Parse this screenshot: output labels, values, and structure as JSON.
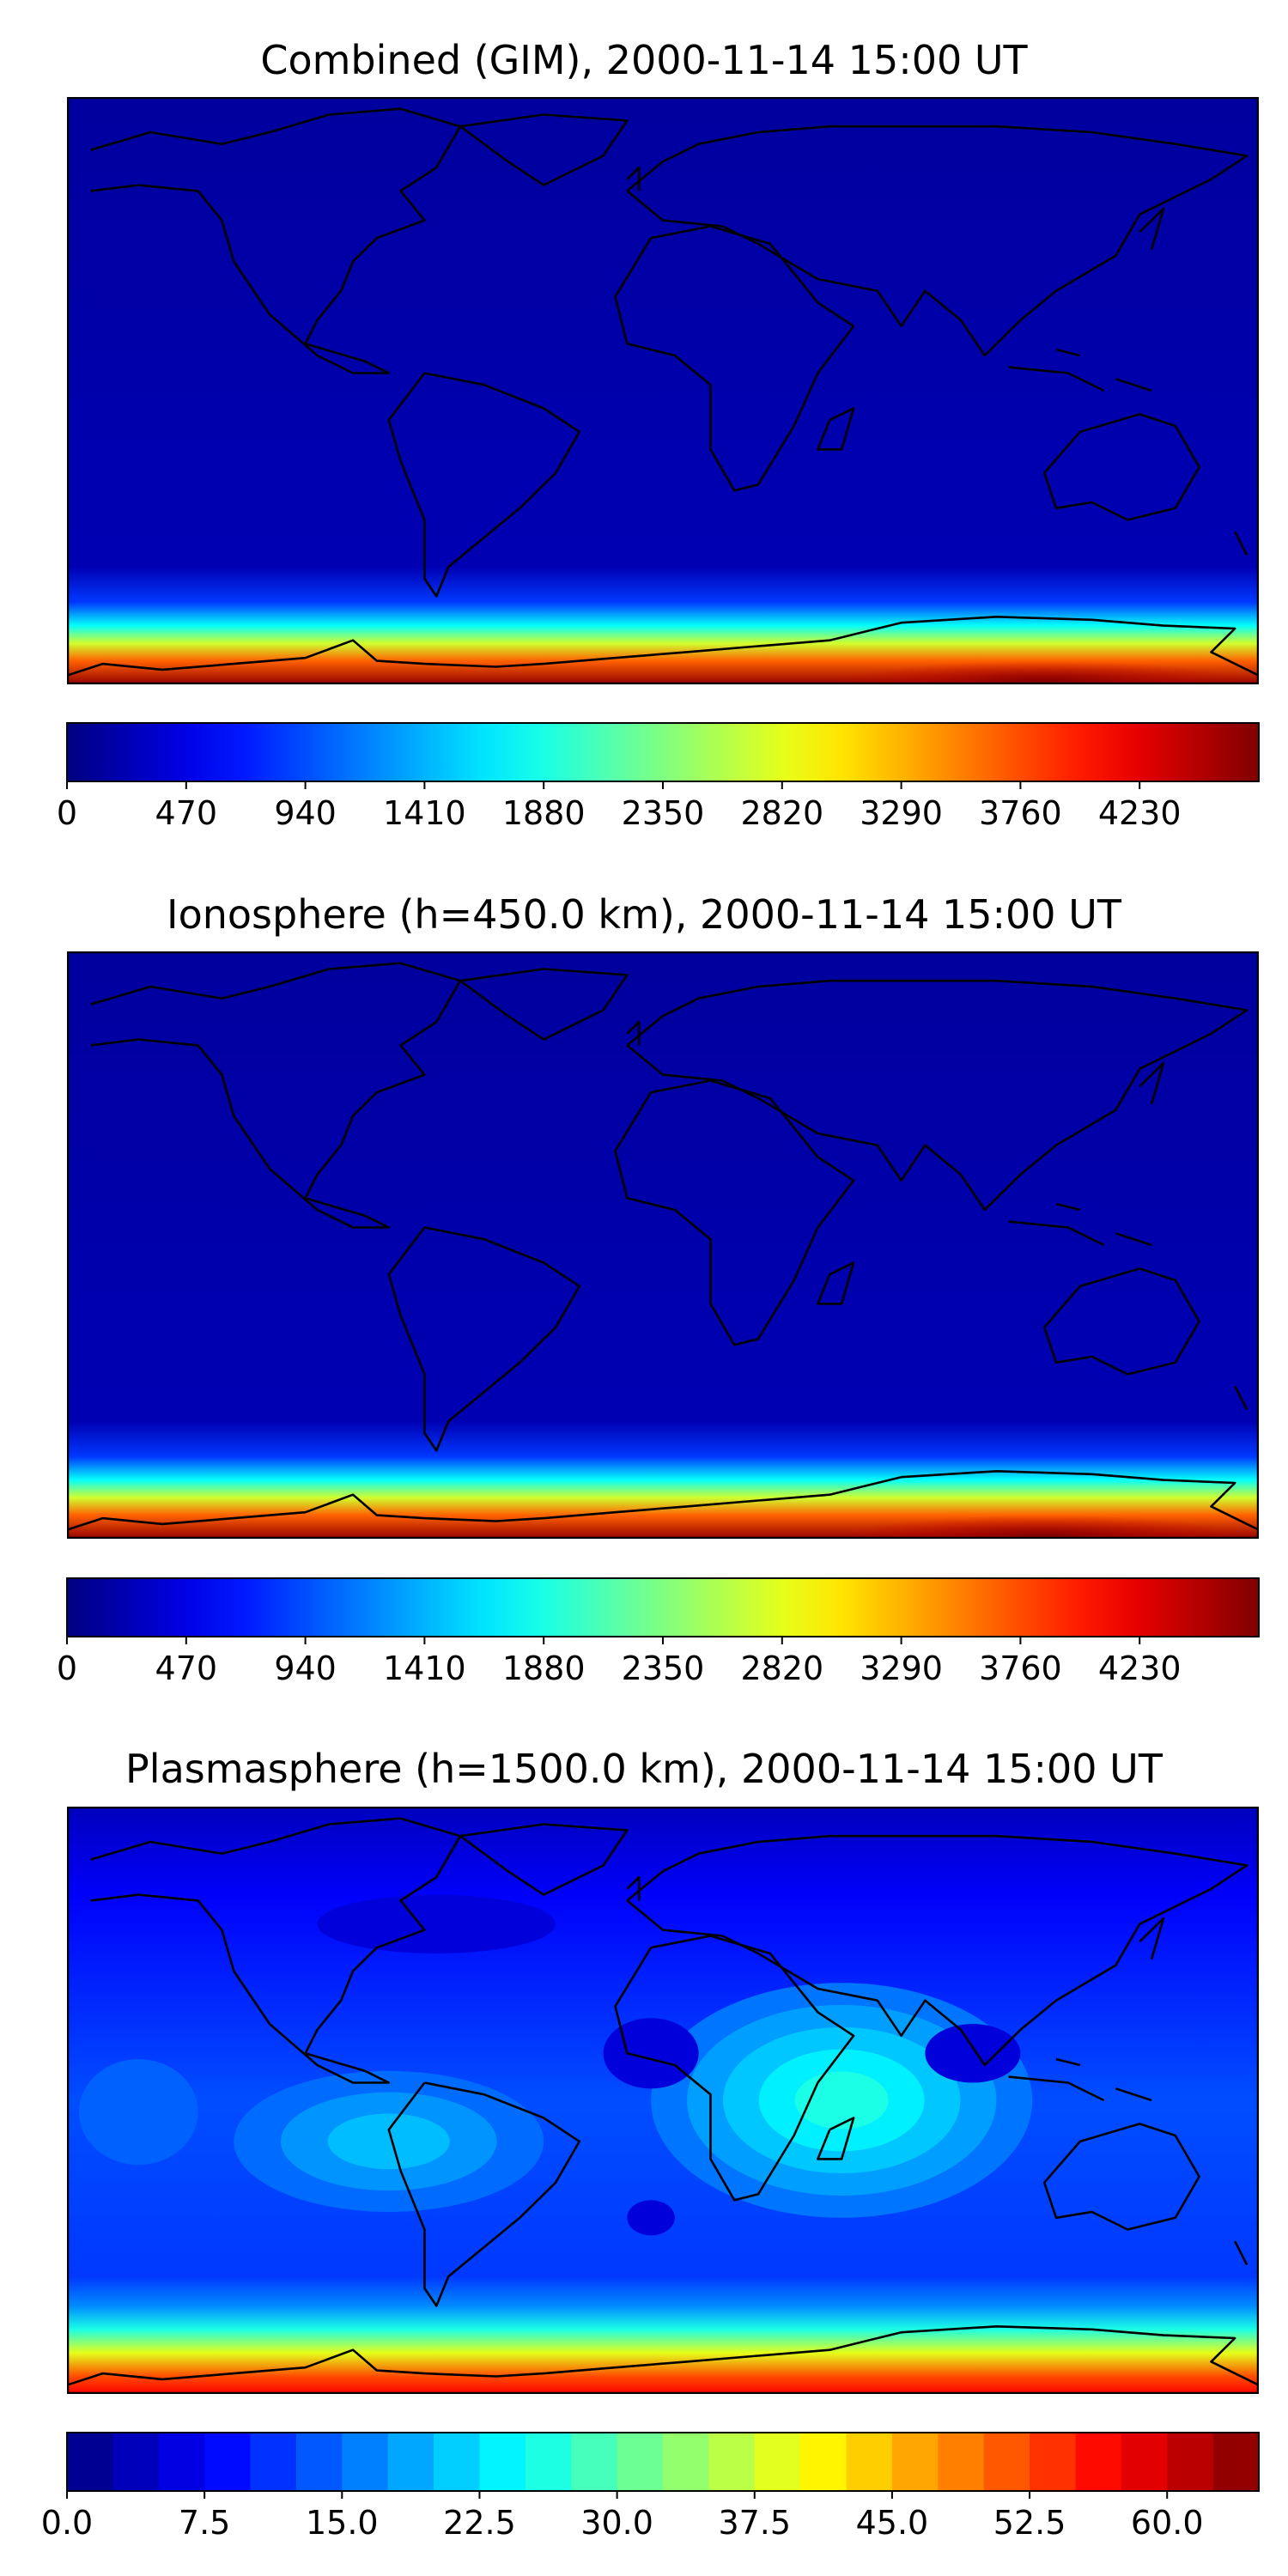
{
  "panels": [
    {
      "title": "Combined (GIM), 2000-11-14 15:00 UT",
      "field": "ionosphere",
      "colorbar": {
        "style": "continuous",
        "min": 0,
        "max": 4700,
        "ticks": [
          "0",
          "470",
          "940",
          "1410",
          "1880",
          "2350",
          "2820",
          "3290",
          "3760",
          "4230"
        ]
      }
    },
    {
      "title": "Ionosphere  (h=450.0 km), 2000-11-14 15:00 UT",
      "field": "ionosphere",
      "colorbar": {
        "style": "continuous",
        "min": 0,
        "max": 4700,
        "ticks": [
          "0",
          "470",
          "940",
          "1410",
          "1880",
          "2350",
          "2820",
          "3290",
          "3760",
          "4230"
        ]
      }
    },
    {
      "title": "Plasmasphere (h=1500.0 km), 2000-11-14 15:00 UT",
      "field": "plasmasphere",
      "colorbar": {
        "style": "discrete",
        "min": 0,
        "max": 65,
        "levels": 26,
        "ticks": [
          "0.0",
          "7.5",
          "15.0",
          "22.5",
          "30.0",
          "37.5",
          "45.0",
          "52.5",
          "60.0"
        ]
      }
    }
  ],
  "colormap": "jet",
  "coastline_color": "#000000"
}
